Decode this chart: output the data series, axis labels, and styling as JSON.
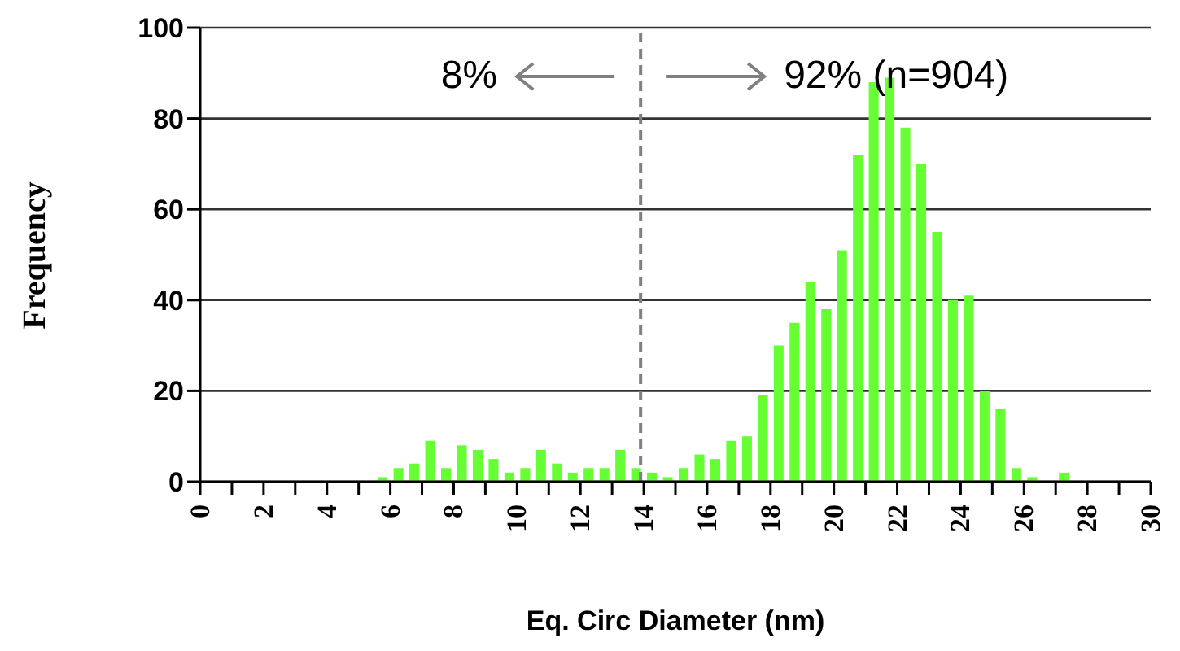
{
  "chart_data": {
    "type": "histogram",
    "xlabel": "Eq. Circ Diameter (nm)",
    "ylabel": "Frequency",
    "bins": [
      0,
      0.5,
      1,
      1.5,
      2,
      2.5,
      3,
      3.5,
      4,
      4.5,
      5,
      5.5,
      6,
      6.5,
      7,
      7.5,
      8,
      8.5,
      9,
      9.5,
      10,
      10.5,
      11,
      11.5,
      12,
      12.5,
      13,
      13.5,
      14,
      14.5,
      15,
      15.5,
      16,
      16.5,
      17,
      17.5,
      18,
      18.5,
      19,
      19.5,
      20,
      20.5,
      21,
      21.5,
      22,
      22.5,
      23,
      23.5,
      24,
      24.5,
      25,
      25.5,
      26,
      26.5,
      27,
      27.5,
      28,
      28.5,
      29,
      29.5,
      30
    ],
    "values": [
      0,
      0,
      0,
      0,
      0,
      0,
      0,
      0,
      0,
      0,
      0,
      1,
      3,
      4,
      9,
      3,
      8,
      7,
      5,
      2,
      3,
      7,
      4,
      2,
      3,
      3,
      7,
      3,
      2,
      1,
      3,
      6,
      5,
      9,
      10,
      19,
      30,
      35,
      44,
      38,
      51,
      72,
      88,
      89,
      78,
      70,
      55,
      40,
      41,
      20,
      16,
      3,
      1,
      0,
      2,
      0,
      0,
      0,
      0,
      0
    ],
    "color": "#66ff33",
    "xlim": [
      0,
      30
    ],
    "xticks": [
      0,
      {
        "value": 1,
        "label": null
      },
      2,
      {
        "value": 3,
        "label": null
      },
      4,
      {
        "value": 5,
        "label": null
      },
      6,
      {
        "value": 7,
        "label": null
      },
      8,
      {
        "value": 9,
        "label": null
      },
      10,
      {
        "value": 11,
        "label": null
      },
      12,
      {
        "value": 13,
        "label": null
      },
      14,
      {
        "value": 15,
        "label": null
      },
      16,
      {
        "value": 17,
        "label": null
      },
      18,
      {
        "value": 19,
        "label": null
      },
      20,
      {
        "value": 21,
        "label": null
      },
      22,
      {
        "value": 23,
        "label": null
      },
      24,
      {
        "value": 25,
        "label": null
      },
      26,
      {
        "value": 27,
        "label": null
      },
      28,
      {
        "value": 29,
        "label": null
      },
      30
    ],
    "ylim": [
      0,
      100
    ],
    "yticks": [
      0,
      20,
      40,
      60,
      80,
      100
    ],
    "grid": "y",
    "ref_lines": [
      {
        "axis": "x",
        "value": 13.9,
        "color": "#808080",
        "line_style": "dashed"
      }
    ],
    "annotations": [
      "8%",
      "92% (n=904)"
    ]
  }
}
